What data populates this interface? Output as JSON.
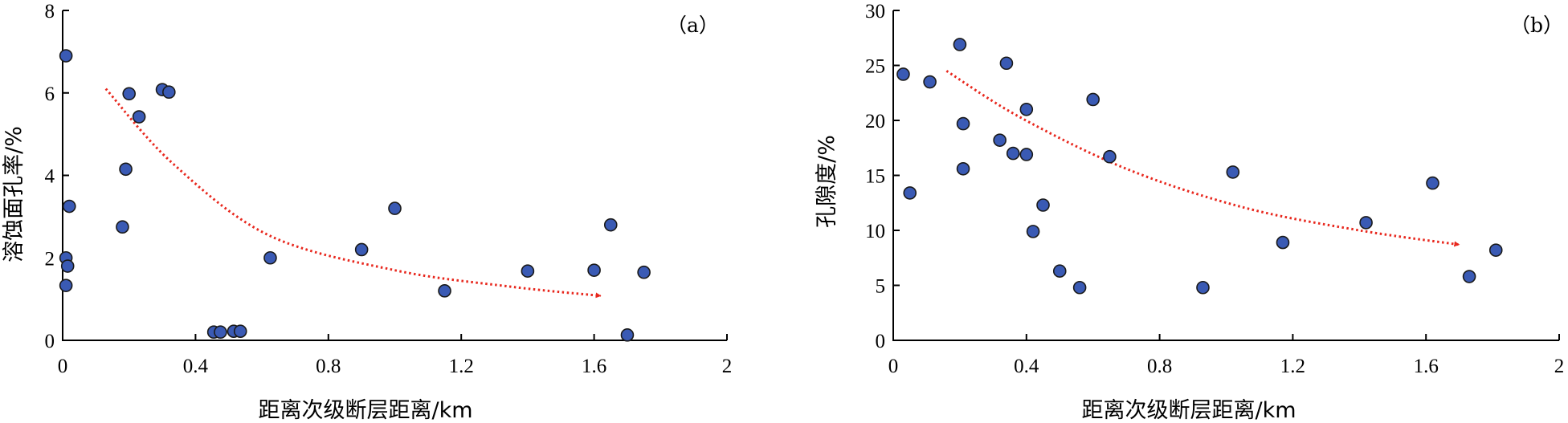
{
  "chart_data": [
    {
      "type": "scatter",
      "panel_label": "（a）",
      "xlabel": "距离次级断层距离/km",
      "ylabel": "溶蚀面孔率/%",
      "xlim": [
        0,
        2
      ],
      "ylim": [
        0,
        8
      ],
      "xticks": [
        0,
        0.4,
        0.8,
        1.2,
        1.6,
        2
      ],
      "xtick_labels": [
        "0",
        "0.4",
        "0.8",
        "1.2",
        "1.6",
        "2"
      ],
      "yticks": [
        0,
        2,
        4,
        6,
        8
      ],
      "ytick_labels": [
        "0",
        "2",
        "4",
        "6",
        "8"
      ],
      "grid": false,
      "point_color": "#3a5ab4",
      "trend_color": "#e8281e",
      "points": [
        {
          "x": 0.01,
          "y": 6.9
        },
        {
          "x": 0.02,
          "y": 3.25
        },
        {
          "x": 0.01,
          "y": 2.0
        },
        {
          "x": 0.015,
          "y": 1.8
        },
        {
          "x": 0.01,
          "y": 1.33
        },
        {
          "x": 0.18,
          "y": 2.75
        },
        {
          "x": 0.19,
          "y": 4.15
        },
        {
          "x": 0.2,
          "y": 5.98
        },
        {
          "x": 0.23,
          "y": 5.42
        },
        {
          "x": 0.3,
          "y": 6.08
        },
        {
          "x": 0.32,
          "y": 6.02
        },
        {
          "x": 0.455,
          "y": 0.2
        },
        {
          "x": 0.475,
          "y": 0.2
        },
        {
          "x": 0.515,
          "y": 0.22
        },
        {
          "x": 0.535,
          "y": 0.22
        },
        {
          "x": 0.625,
          "y": 2.0
        },
        {
          "x": 0.9,
          "y": 2.2
        },
        {
          "x": 1.0,
          "y": 3.2
        },
        {
          "x": 1.15,
          "y": 1.2
        },
        {
          "x": 1.4,
          "y": 1.68
        },
        {
          "x": 1.6,
          "y": 1.7
        },
        {
          "x": 1.65,
          "y": 2.8
        },
        {
          "x": 1.7,
          "y": 0.13
        },
        {
          "x": 1.75,
          "y": 1.65
        }
      ],
      "trend": [
        [
          0.13,
          6.1
        ],
        [
          0.33,
          4.3
        ],
        [
          0.62,
          2.55
        ],
        [
          1.0,
          1.7
        ],
        [
          1.35,
          1.3
        ],
        [
          1.62,
          1.08
        ]
      ]
    },
    {
      "type": "scatter",
      "panel_label": "（b）",
      "xlabel": "距离次级断层距离/km",
      "ylabel": "孔隙度/%",
      "xlim": [
        0,
        2
      ],
      "ylim": [
        0,
        30
      ],
      "xticks": [
        0,
        0.4,
        0.8,
        1.2,
        1.6,
        2
      ],
      "xtick_labels": [
        "0",
        "0.4",
        "0.8",
        "1.2",
        "1.6",
        "2"
      ],
      "yticks": [
        0,
        5,
        10,
        15,
        20,
        25,
        30
      ],
      "ytick_labels": [
        "0",
        "5",
        "10",
        "15",
        "20",
        "25",
        "30"
      ],
      "grid": false,
      "point_color": "#3a5ab4",
      "trend_color": "#e8281e",
      "points": [
        {
          "x": 0.03,
          "y": 24.2
        },
        {
          "x": 0.05,
          "y": 13.4
        },
        {
          "x": 0.11,
          "y": 23.5
        },
        {
          "x": 0.2,
          "y": 26.9
        },
        {
          "x": 0.21,
          "y": 19.7
        },
        {
          "x": 0.21,
          "y": 15.6
        },
        {
          "x": 0.32,
          "y": 18.2
        },
        {
          "x": 0.34,
          "y": 25.2
        },
        {
          "x": 0.36,
          "y": 17.0
        },
        {
          "x": 0.4,
          "y": 21.0
        },
        {
          "x": 0.4,
          "y": 16.9
        },
        {
          "x": 0.42,
          "y": 9.9
        },
        {
          "x": 0.45,
          "y": 12.3
        },
        {
          "x": 0.5,
          "y": 6.3
        },
        {
          "x": 0.56,
          "y": 4.8
        },
        {
          "x": 0.6,
          "y": 21.9
        },
        {
          "x": 0.65,
          "y": 16.7
        },
        {
          "x": 0.93,
          "y": 4.8
        },
        {
          "x": 1.02,
          "y": 15.3
        },
        {
          "x": 1.17,
          "y": 8.9
        },
        {
          "x": 1.42,
          "y": 10.7
        },
        {
          "x": 1.62,
          "y": 14.3
        },
        {
          "x": 1.73,
          "y": 5.8
        },
        {
          "x": 1.81,
          "y": 8.2
        }
      ],
      "trend": [
        [
          0.16,
          24.5
        ],
        [
          0.38,
          20.3
        ],
        [
          0.7,
          15.6
        ],
        [
          1.05,
          12.1
        ],
        [
          1.4,
          10.0
        ],
        [
          1.7,
          8.7
        ]
      ]
    }
  ]
}
